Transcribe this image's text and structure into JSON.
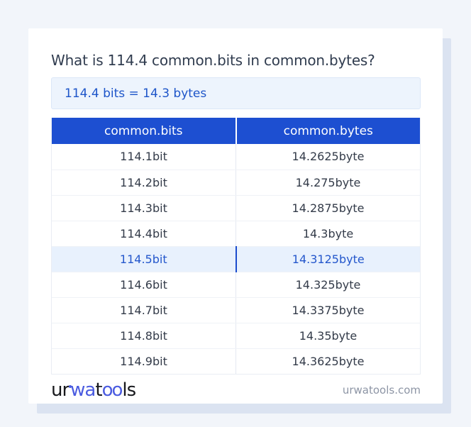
{
  "title": "What is 114.4 common.bits in common.bytes?",
  "result": "114.4 bits = 14.3 bytes",
  "table": {
    "columns": [
      "common.bits",
      "common.bytes"
    ],
    "rows": [
      {
        "bits": "114.1bit",
        "bytes": "14.2625byte",
        "highlight": false
      },
      {
        "bits": "114.2bit",
        "bytes": "14.275byte",
        "highlight": false
      },
      {
        "bits": "114.3bit",
        "bytes": "14.2875byte",
        "highlight": false
      },
      {
        "bits": "114.4bit",
        "bytes": "14.3byte",
        "highlight": false
      },
      {
        "bits": "114.5bit",
        "bytes": "14.3125byte",
        "highlight": true
      },
      {
        "bits": "114.6bit",
        "bytes": "14.325byte",
        "highlight": false
      },
      {
        "bits": "114.7bit",
        "bytes": "14.3375byte",
        "highlight": false
      },
      {
        "bits": "114.8bit",
        "bytes": "14.35byte",
        "highlight": false
      },
      {
        "bits": "114.9bit",
        "bytes": "14.3625byte",
        "highlight": false
      }
    ]
  },
  "footer": {
    "logo_parts": [
      "ur",
      "wa",
      "t",
      "oo",
      "ls"
    ],
    "site": "urwatools.com"
  },
  "colors": {
    "accent_blue": "#1d4fd1",
    "highlight_row_bg": "#e8f1fd",
    "highlight_text": "#2457cc",
    "result_box_bg": "#edf4fd",
    "result_text": "#1d55c9",
    "logo_blue": "#4a5be0",
    "page_bg": "#f2f5fa"
  }
}
